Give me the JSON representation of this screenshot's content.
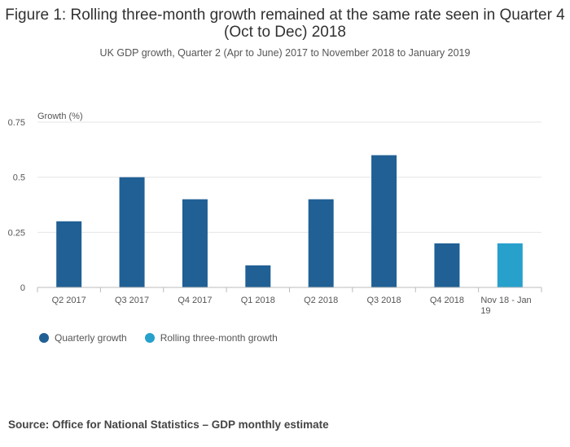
{
  "title": "Figure 1: Rolling three-month growth remained at the same rate seen in Quarter 4 (Oct to Dec) 2018",
  "subtitle": "UK GDP growth, Quarter 2 (Apr to June) 2017 to November 2018 to January 2019",
  "source": "Source: Office for National Statistics – GDP monthly estimate",
  "colors": {
    "quarterly": "#206095",
    "rolling": "#27a0cc"
  },
  "chart_data": {
    "type": "bar",
    "title": "Figure 1: Rolling three-month growth remained at the same rate seen in Quarter 4 (Oct to Dec) 2018",
    "ylabel": "Growth (%)",
    "xlabel": "",
    "ylim": [
      0,
      0.75
    ],
    "yticks": [
      "0",
      "0.25",
      "0.5",
      "0.75"
    ],
    "categories": [
      "Q2 2017",
      "Q3 2017",
      "Q4 2017",
      "Q1 2018",
      "Q2 2018",
      "Q3 2018",
      "Q4 2018",
      "Nov 18 - Jan 19"
    ],
    "series": [
      {
        "name": "Quarterly growth",
        "values": [
          0.3,
          0.5,
          0.4,
          0.1,
          0.4,
          0.6,
          0.2,
          null
        ]
      },
      {
        "name": "Rolling three-month growth",
        "values": [
          null,
          null,
          null,
          null,
          null,
          null,
          null,
          0.2
        ]
      }
    ],
    "legend": "bottom-left",
    "grid": true
  }
}
